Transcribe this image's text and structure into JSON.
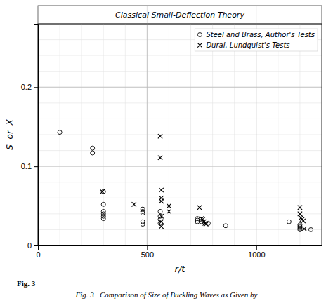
{
  "chart_data": {
    "type": "scatter",
    "title": "Classical Small-Deflection Theory",
    "xlabel": "r/t",
    "ylabel": "S  or  X",
    "annotations": [
      "Fig. 3",
      "Fig. 3   Comparison of Size of Buckling Waves as Given by"
    ],
    "xlim": [
      0,
      1300
    ],
    "ylim": [
      0,
      0.28
    ],
    "xticks": [
      0,
      500,
      1000
    ],
    "yticks": [
      0,
      0.1,
      0.2
    ],
    "minor_xticks": [
      0,
      100,
      200,
      300,
      400,
      500,
      600,
      700,
      800,
      900,
      1000,
      1100,
      1200,
      1300
    ],
    "minor_yticks": [
      0,
      0.02,
      0.04,
      0.06,
      0.08,
      0.1,
      0.12,
      0.14,
      0.16,
      0.18,
      0.2,
      0.22,
      0.24,
      0.26,
      0.28
    ],
    "grid": true,
    "legend": "upper right",
    "series": [
      {
        "name": "Steel and Brass, Author's Tests",
        "marker": "circle",
        "color": "#000000",
        "x": [
          100,
          250,
          250,
          300,
          300,
          300,
          300,
          300,
          300,
          480,
          480,
          480,
          480,
          480,
          560,
          560,
          560,
          560,
          730,
          730,
          730,
          750,
          780,
          860,
          1150,
          1200,
          1200,
          1200,
          1200,
          1250
        ],
        "values": [
          0.143,
          0.123,
          0.117,
          0.068,
          0.052,
          0.043,
          0.04,
          0.037,
          0.034,
          0.046,
          0.043,
          0.041,
          0.03,
          0.027,
          0.043,
          0.037,
          0.033,
          0.028,
          0.034,
          0.032,
          0.03,
          0.03,
          0.028,
          0.025,
          0.03,
          0.026,
          0.024,
          0.022,
          0.02,
          0.02
        ]
      },
      {
        "name": "Dural, Lundquist's Tests",
        "marker": "x",
        "color": "#000000",
        "x": [
          295,
          440,
          560,
          560,
          565,
          565,
          565,
          565,
          565,
          565,
          600,
          600,
          740,
          750,
          755,
          760,
          765,
          770,
          1200,
          1200,
          1205,
          1210,
          1215,
          1220
        ],
        "values": [
          0.068,
          0.052,
          0.138,
          0.111,
          0.07,
          0.06,
          0.056,
          0.037,
          0.03,
          0.024,
          0.05,
          0.043,
          0.048,
          0.034,
          0.033,
          0.03,
          0.028,
          0.027,
          0.048,
          0.04,
          0.035,
          0.033,
          0.031,
          0.021
        ]
      }
    ]
  }
}
